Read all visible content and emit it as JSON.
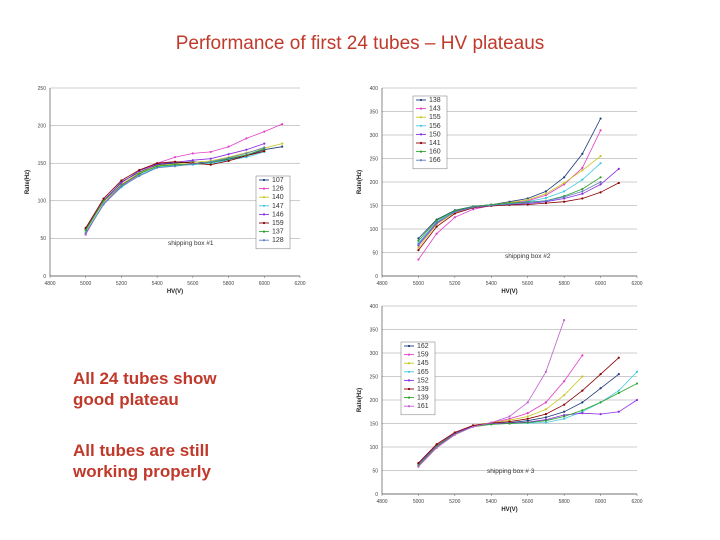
{
  "title": "Performance of first 24 tubes – HV plateaus",
  "bullets": {
    "line1": "All 24 tubes show",
    "line2": "good plateau",
    "line3": "All tubes are still",
    "line4": "working properly"
  },
  "chart_data": [
    {
      "type": "line",
      "xlabel": "HV(V)",
      "ylabel": "Rate(Hz)",
      "annotation": "shipping box #1",
      "xlim": [
        4800,
        6200
      ],
      "ylim": [
        0,
        250
      ],
      "xticks": [
        4800,
        5000,
        5200,
        5400,
        5600,
        5800,
        6000,
        6200
      ],
      "yticks": [
        0,
        50,
        100,
        150,
        200,
        250
      ],
      "series": [
        {
          "name": "107",
          "color": "#1f3b7a",
          "x": [
            5000,
            5100,
            5200,
            5300,
            5400,
            5500,
            5600,
            5700,
            5800,
            5900,
            6000,
            6100
          ],
          "y": [
            63,
            100,
            125,
            138,
            148,
            150,
            152,
            150,
            155,
            160,
            168,
            172
          ]
        },
        {
          "name": "126",
          "color": "#e040c8",
          "x": [
            5000,
            5100,
            5200,
            5300,
            5400,
            5500,
            5600,
            5700,
            5800,
            5900,
            6000,
            6100
          ],
          "y": [
            55,
            97,
            120,
            135,
            150,
            158,
            163,
            165,
            172,
            183,
            192,
            202
          ]
        },
        {
          "name": "140",
          "color": "#c8c820",
          "x": [
            5000,
            5100,
            5200,
            5300,
            5400,
            5500,
            5600,
            5700,
            5800,
            5900,
            6000,
            6100
          ],
          "y": [
            60,
            99,
            122,
            137,
            147,
            149,
            151,
            153,
            158,
            164,
            170,
            176
          ]
        },
        {
          "name": "147",
          "color": "#40c8e0",
          "x": [
            5000,
            5100,
            5200,
            5300,
            5400,
            5500,
            5600,
            5700,
            5800,
            5900,
            6000
          ],
          "y": [
            58,
            96,
            118,
            134,
            145,
            147,
            148,
            150,
            154,
            158,
            165
          ]
        },
        {
          "name": "146",
          "color": "#8a2be2",
          "x": [
            5000,
            5100,
            5200,
            5300,
            5400,
            5500,
            5600,
            5700,
            5800,
            5900,
            6000
          ],
          "y": [
            62,
            101,
            124,
            140,
            149,
            151,
            154,
            156,
            162,
            168,
            176
          ]
        },
        {
          "name": "159",
          "color": "#8b0000",
          "x": [
            5000,
            5100,
            5200,
            5300,
            5400,
            5500,
            5600,
            5700,
            5800,
            5900,
            6000
          ],
          "y": [
            64,
            103,
            127,
            141,
            150,
            152,
            150,
            148,
            153,
            160,
            166
          ]
        },
        {
          "name": "137",
          "color": "#2ca02c",
          "x": [
            5000,
            5100,
            5200,
            5300,
            5400,
            5500,
            5600,
            5700,
            5800,
            5900,
            6000
          ],
          "y": [
            61,
            100,
            121,
            136,
            146,
            148,
            149,
            151,
            156,
            161,
            169
          ]
        },
        {
          "name": "128",
          "color": "#5f7fbf",
          "x": [
            5000,
            5100,
            5200,
            5300,
            5400,
            5500,
            5600,
            5700,
            5800,
            5900,
            6000
          ],
          "y": [
            57,
            95,
            119,
            133,
            144,
            146,
            149,
            152,
            157,
            163,
            171
          ]
        }
      ]
    },
    {
      "type": "line",
      "xlabel": "HV(V)",
      "ylabel": "Rate(Hz)",
      "annotation": "shipping box #2",
      "xlim": [
        4800,
        6200
      ],
      "ylim": [
        0,
        400
      ],
      "xticks": [
        4800,
        5000,
        5200,
        5400,
        5600,
        5800,
        6000,
        6200
      ],
      "yticks": [
        0,
        50,
        100,
        150,
        200,
        250,
        300,
        350,
        400
      ],
      "series": [
        {
          "name": "138",
          "color": "#1f3b7a",
          "x": [
            5000,
            5100,
            5200,
            5300,
            5400,
            5500,
            5600,
            5700,
            5800,
            5900,
            6000
          ],
          "y": [
            80,
            120,
            140,
            148,
            152,
            158,
            165,
            180,
            210,
            260,
            335
          ]
        },
        {
          "name": "143",
          "color": "#e040c8",
          "x": [
            5000,
            5100,
            5200,
            5300,
            5400,
            5500,
            5600,
            5700,
            5800,
            5900,
            6000
          ],
          "y": [
            35,
            90,
            125,
            142,
            150,
            155,
            160,
            172,
            195,
            230,
            310
          ]
        },
        {
          "name": "155",
          "color": "#c8c820",
          "x": [
            5000,
            5100,
            5200,
            5300,
            5400,
            5500,
            5600,
            5700,
            5800,
            5900,
            6000
          ],
          "y": [
            60,
            110,
            135,
            146,
            152,
            156,
            162,
            175,
            198,
            225,
            255
          ]
        },
        {
          "name": "156",
          "color": "#40c8e0",
          "x": [
            5000,
            5100,
            5200,
            5300,
            5400,
            5500,
            5600,
            5700,
            5800,
            5900,
            6000
          ],
          "y": [
            70,
            115,
            138,
            147,
            151,
            154,
            158,
            166,
            180,
            205,
            240
          ]
        },
        {
          "name": "150",
          "color": "#8a2be2",
          "x": [
            5000,
            5100,
            5200,
            5300,
            5400,
            5500,
            5600,
            5700,
            5800,
            5900,
            6000,
            6100
          ],
          "y": [
            65,
            112,
            137,
            147,
            150,
            152,
            154,
            158,
            165,
            175,
            195,
            228
          ]
        },
        {
          "name": "141",
          "color": "#8b0000",
          "x": [
            5000,
            5100,
            5200,
            5300,
            5400,
            5500,
            5600,
            5700,
            5800,
            5900,
            6000,
            6100
          ],
          "y": [
            55,
            105,
            133,
            145,
            149,
            151,
            152,
            155,
            158,
            165,
            178,
            198
          ]
        },
        {
          "name": "160",
          "color": "#2ca02c",
          "x": [
            5000,
            5100,
            5200,
            5300,
            5400,
            5500,
            5600,
            5700,
            5800,
            5900,
            6000
          ],
          "y": [
            75,
            118,
            139,
            148,
            152,
            155,
            157,
            160,
            170,
            185,
            210
          ]
        },
        {
          "name": "166",
          "color": "#5f7fbf",
          "x": [
            5000,
            5100,
            5200,
            5300,
            5400,
            5500,
            5600,
            5700,
            5800,
            5900,
            6000
          ],
          "y": [
            68,
            114,
            136,
            146,
            150,
            153,
            156,
            160,
            168,
            180,
            200
          ]
        }
      ]
    },
    {
      "type": "line",
      "xlabel": "HV(V)",
      "ylabel": "Rate(Hz)",
      "annotation": "shipping box # 3",
      "xlim": [
        4800,
        6200
      ],
      "ylim": [
        0,
        400
      ],
      "xticks": [
        4800,
        5000,
        5200,
        5400,
        5600,
        5800,
        6000,
        6200
      ],
      "yticks": [
        0,
        50,
        100,
        150,
        200,
        250,
        300,
        350,
        400
      ],
      "series": [
        {
          "name": "162",
          "color": "#1f3b7a",
          "x": [
            5000,
            5100,
            5200,
            5300,
            5400,
            5500,
            5600,
            5700,
            5800,
            5900,
            6000,
            6100
          ],
          "y": [
            65,
            105,
            130,
            145,
            150,
            152,
            156,
            163,
            175,
            195,
            225,
            255
          ]
        },
        {
          "name": "159",
          "color": "#e040c8",
          "x": [
            5000,
            5100,
            5200,
            5300,
            5400,
            5500,
            5600,
            5700,
            5800,
            5900
          ],
          "y": [
            60,
            100,
            128,
            145,
            152,
            160,
            172,
            195,
            240,
            295
          ]
        },
        {
          "name": "145",
          "color": "#c8c820",
          "x": [
            5000,
            5100,
            5200,
            5300,
            5400,
            5500,
            5600,
            5700,
            5800,
            5900
          ],
          "y": [
            63,
            104,
            130,
            146,
            152,
            157,
            165,
            180,
            210,
            250
          ]
        },
        {
          "name": "165",
          "color": "#40c8e0",
          "x": [
            5000,
            5100,
            5200,
            5300,
            5400,
            5500,
            5600,
            5700,
            5800,
            5900,
            6000,
            6100,
            6200
          ],
          "y": [
            62,
            102,
            128,
            144,
            149,
            150,
            151,
            152,
            160,
            175,
            195,
            220,
            260
          ]
        },
        {
          "name": "152",
          "color": "#8a2be2",
          "x": [
            5000,
            5100,
            5200,
            5300,
            5400,
            5500,
            5600,
            5700,
            5800,
            5900,
            6000,
            6100,
            6200
          ],
          "y": [
            64,
            103,
            129,
            145,
            150,
            151,
            153,
            158,
            168,
            172,
            170,
            175,
            200
          ]
        },
        {
          "name": "139",
          "color": "#8b0000",
          "x": [
            5000,
            5100,
            5200,
            5300,
            5400,
            5500,
            5600,
            5700,
            5800,
            5900,
            6000,
            6100
          ],
          "y": [
            66,
            106,
            131,
            146,
            151,
            154,
            160,
            170,
            190,
            220,
            255,
            290
          ]
        },
        {
          "name": "139",
          "color": "#2ca02c",
          "x": [
            5000,
            5100,
            5200,
            5300,
            5400,
            5500,
            5600,
            5700,
            5800,
            5900,
            6000,
            6100,
            6200
          ],
          "y": [
            61,
            101,
            127,
            143,
            148,
            150,
            152,
            156,
            165,
            178,
            195,
            215,
            235
          ]
        },
        {
          "name": "161",
          "color": "#c05fcf",
          "x": [
            5000,
            5100,
            5200,
            5300,
            5400,
            5500,
            5600,
            5700,
            5800
          ],
          "y": [
            58,
            98,
            126,
            143,
            152,
            165,
            195,
            260,
            370
          ]
        }
      ]
    }
  ]
}
